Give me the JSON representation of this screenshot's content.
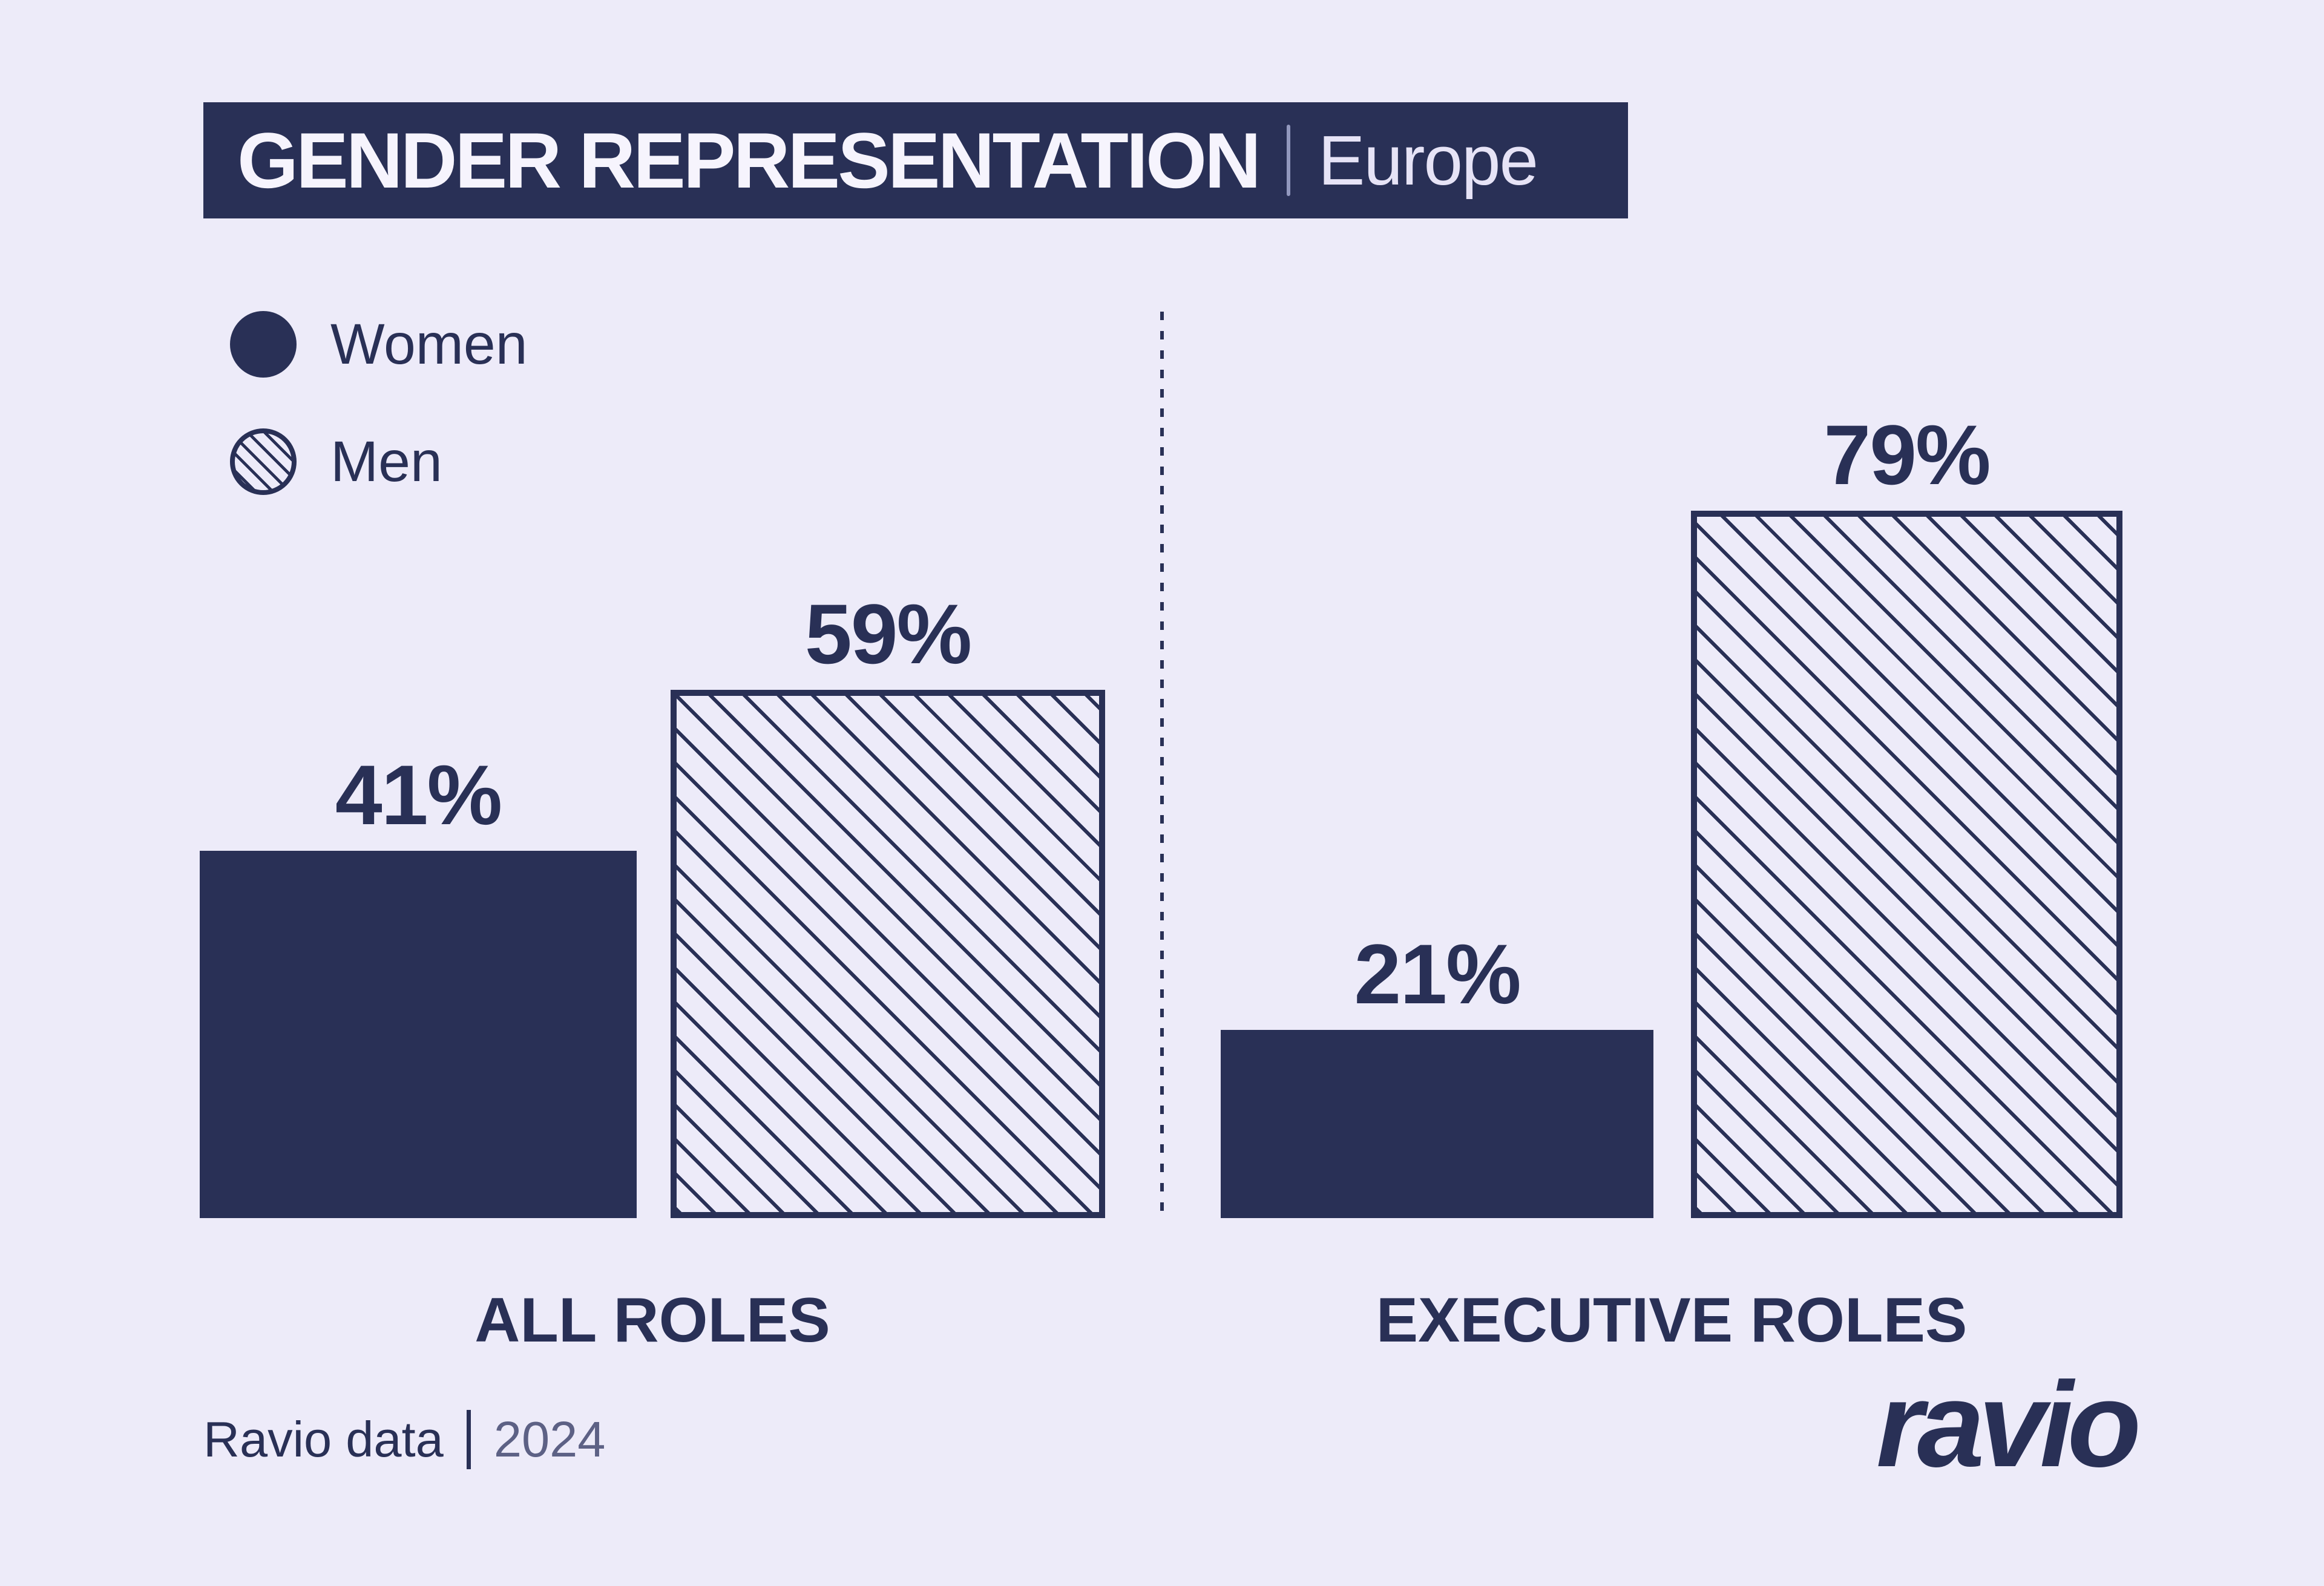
{
  "title": {
    "main": "GENDER REPRESENTATION",
    "region": "Europe"
  },
  "legend": {
    "items": [
      {
        "label": "Women",
        "swatch": "solid-circle"
      },
      {
        "label": "Men",
        "swatch": "hatched-circle"
      }
    ]
  },
  "chart_data": {
    "type": "bar",
    "title": "GENDER REPRESENTATION | Europe",
    "categories": [
      "ALL ROLES",
      "EXECUTIVE ROLES"
    ],
    "series": [
      {
        "name": "Women",
        "values": [
          41,
          21
        ],
        "style": "solid"
      },
      {
        "name": "Men",
        "values": [
          59,
          79
        ],
        "style": "hatched"
      }
    ],
    "unit": "%",
    "ylim": [
      0,
      100
    ],
    "grid": false,
    "legend_position": "top-left",
    "value_labels_shown": true
  },
  "groups": [
    {
      "label": "ALL ROLES",
      "bars": [
        {
          "series": "Women",
          "value": 41,
          "label": "41%",
          "pattern": "solid"
        },
        {
          "series": "Men",
          "value": 59,
          "label": "59%",
          "pattern": "hatched"
        }
      ]
    },
    {
      "label": "EXECUTIVE ROLES",
      "bars": [
        {
          "series": "Women",
          "value": 21,
          "label": "21%",
          "pattern": "solid"
        },
        {
          "series": "Men",
          "value": 79,
          "label": "79%",
          "pattern": "hatched"
        }
      ]
    }
  ],
  "footer": {
    "source": "Ravio data",
    "year": "2024",
    "logo": "ravio"
  },
  "colors": {
    "navy": "#293056",
    "background": "#EDEBF9",
    "banner_text": "#F6F4FD",
    "banner_subtext": "#E6E3F6",
    "year_text": "#5D6185"
  }
}
